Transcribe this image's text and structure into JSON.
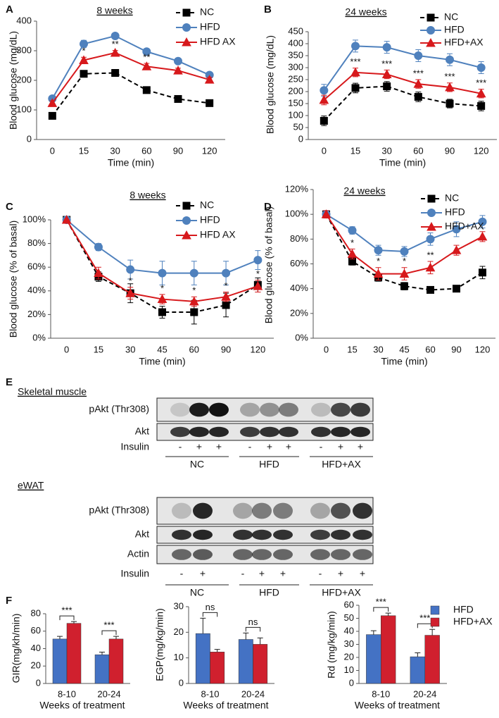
{
  "panel_labels": [
    "A",
    "B",
    "C",
    "D",
    "E",
    "F"
  ],
  "chart_data": [
    {
      "type": "line",
      "title": "8 weeks",
      "xlabel": "Time (min)",
      "ylabel": "Blood glucose (mg/dL)",
      "categories": [
        "0",
        "15",
        "30",
        "60",
        "90",
        "120"
      ],
      "ylim": [
        0,
        400
      ],
      "yticks": [
        0,
        100,
        200,
        300,
        400
      ],
      "legend": "upper right",
      "series": [
        {
          "name": "NC",
          "color": "#000000",
          "marker": "square",
          "dashed": true,
          "values": [
            80,
            222,
            225,
            167,
            137,
            123
          ],
          "errors": [
            8,
            10,
            8,
            8,
            6,
            8
          ]
        },
        {
          "name": "HFD",
          "color": "#4f81bd",
          "marker": "circle",
          "dashed": false,
          "values": [
            138,
            323,
            350,
            297,
            265,
            218
          ],
          "errors": [
            8,
            12,
            8,
            8,
            8,
            8
          ]
        },
        {
          "name": "HFD AX",
          "color": "#d7191c",
          "marker": "triangle",
          "dashed": false,
          "values": [
            123,
            268,
            293,
            247,
            233,
            202
          ],
          "errors": [
            8,
            10,
            8,
            10,
            8,
            8
          ]
        }
      ],
      "annotations": [
        null,
        "*",
        "**",
        "**",
        null,
        null
      ]
    },
    {
      "type": "line",
      "title": "24 weeks",
      "xlabel": "Time (min)",
      "ylabel": "Blood glucose (mg/dL)",
      "categories": [
        "0",
        "15",
        "30",
        "60",
        "90",
        "120"
      ],
      "ylim": [
        0,
        450
      ],
      "yticks": [
        0,
        50,
        100,
        150,
        200,
        250,
        300,
        350,
        400,
        450
      ],
      "legend": "upper right",
      "series": [
        {
          "name": "NC",
          "color": "#000000",
          "marker": "square",
          "dashed": true,
          "values": [
            78,
            215,
            222,
            178,
            150,
            140
          ],
          "errors": [
            20,
            20,
            20,
            20,
            18,
            20
          ]
        },
        {
          "name": "HFD",
          "color": "#4f81bd",
          "marker": "circle",
          "dashed": false,
          "values": [
            205,
            390,
            385,
            350,
            333,
            300
          ],
          "errors": [
            25,
            25,
            25,
            25,
            25,
            25
          ]
        },
        {
          "name": "HFD+AX",
          "color": "#d7191c",
          "marker": "triangle",
          "dashed": false,
          "values": [
            165,
            280,
            272,
            232,
            218,
            192
          ],
          "errors": [
            20,
            18,
            18,
            18,
            18,
            18
          ]
        }
      ],
      "annotations": [
        null,
        "***",
        "***",
        "***",
        "***",
        "***"
      ]
    },
    {
      "type": "line",
      "title": "8 weeks",
      "xlabel": "Time (min)",
      "ylabel": "Blood glucose (% of basal)",
      "categories": [
        "0",
        "15",
        "30",
        "45",
        "60",
        "90",
        "120"
      ],
      "ylim": [
        0,
        100
      ],
      "yticks": [
        {
          "value": 0,
          "label": "0%"
        },
        {
          "value": 20,
          "label": "20%"
        },
        {
          "value": 40,
          "label": "40%"
        },
        {
          "value": 60,
          "label": "60%"
        },
        {
          "value": 80,
          "label": "80%"
        },
        {
          "value": 100,
          "label": "100%"
        }
      ],
      "legend": "upper right",
      "series": [
        {
          "name": "NC",
          "color": "#000000",
          "marker": "square",
          "dashed": true,
          "values": [
            100,
            52,
            38,
            22,
            22,
            28,
            45
          ],
          "errors": [
            0,
            4,
            8,
            5,
            10,
            10,
            6
          ]
        },
        {
          "name": "HFD",
          "color": "#4f81bd",
          "marker": "circle",
          "dashed": false,
          "values": [
            100,
            77,
            58,
            55,
            55,
            55,
            66
          ],
          "errors": [
            0,
            3,
            8,
            10,
            10,
            10,
            8
          ]
        },
        {
          "name": "HFD AX",
          "color": "#d7191c",
          "marker": "triangle",
          "dashed": false,
          "values": [
            100,
            55,
            38,
            33,
            31,
            35,
            44
          ],
          "errors": [
            0,
            5,
            5,
            4,
            4,
            4,
            5
          ]
        }
      ],
      "annotations": [
        null,
        null,
        "*",
        "*",
        "*",
        "*",
        "*"
      ]
    },
    {
      "type": "line",
      "title": "24 weeks",
      "xlabel": "Time (min)",
      "ylabel": "Blood glucose (% of basal)",
      "categories": [
        "0",
        "15",
        "30",
        "45",
        "60",
        "90",
        "120"
      ],
      "ylim": [
        0,
        120
      ],
      "yticks": [
        {
          "value": 0,
          "label": "0%"
        },
        {
          "value": 20,
          "label": "20%"
        },
        {
          "value": 40,
          "label": "40%"
        },
        {
          "value": 60,
          "label": "60%"
        },
        {
          "value": 80,
          "label": "80%"
        },
        {
          "value": 100,
          "label": "100%"
        },
        {
          "value": 120,
          "label": "120%"
        }
      ],
      "legend": "upper right",
      "series": [
        {
          "name": "NC",
          "color": "#000000",
          "marker": "square",
          "dashed": true,
          "values": [
            100,
            62,
            49,
            42,
            39,
            40,
            53
          ],
          "errors": [
            2,
            3,
            3,
            3,
            2,
            2,
            5
          ]
        },
        {
          "name": "HFD",
          "color": "#4f81bd",
          "marker": "circle",
          "dashed": false,
          "values": [
            100,
            87,
            71,
            70,
            80,
            88,
            94
          ],
          "errors": [
            3,
            3,
            4,
            4,
            5,
            6,
            5
          ]
        },
        {
          "name": "HFD+AX",
          "color": "#d7191c",
          "marker": "triangle",
          "dashed": false,
          "values": [
            100,
            68,
            52,
            52,
            57,
            71,
            82
          ],
          "errors": [
            3,
            4,
            5,
            5,
            5,
            4,
            4
          ]
        }
      ],
      "annotations": [
        null,
        "*",
        "*",
        "*",
        "**",
        null,
        null
      ]
    },
    {
      "type": "bar",
      "xlabel": "Weeks of treatment",
      "ylabel": "GIR(mg/kh/min)",
      "categories": [
        "8-10",
        "20-24"
      ],
      "ylim": [
        0,
        80
      ],
      "yticks": [
        0,
        20,
        40,
        60,
        80
      ],
      "legend": false,
      "series": [
        {
          "name": "HFD",
          "color": "#4472c4",
          "values": [
            51,
            33
          ],
          "errors": [
            3,
            3
          ]
        },
        {
          "name": "HFD+AX",
          "color": "#d0202e",
          "values": [
            69,
            51
          ],
          "errors": [
            2,
            3
          ]
        }
      ],
      "annotations": [
        "***",
        "***"
      ]
    },
    {
      "type": "bar",
      "xlabel": "Weeks of treatment",
      "ylabel": "EGP(mg/kg/min)",
      "categories": [
        "8-10",
        "20-24"
      ],
      "ylim": [
        0,
        30
      ],
      "yticks": [
        0,
        10,
        20,
        30
      ],
      "legend": false,
      "series": [
        {
          "name": "HFD",
          "color": "#4472c4",
          "values": [
            19.5,
            17.2
          ],
          "errors": [
            6,
            2.5
          ]
        },
        {
          "name": "HFD+AX",
          "color": "#d0202e",
          "values": [
            12.3,
            15.3
          ],
          "errors": [
            1,
            2.5
          ]
        }
      ],
      "annotations": [
        "ns",
        "ns"
      ]
    },
    {
      "type": "bar",
      "xlabel": "Weeks of treatment",
      "ylabel": "Rd (mg/kg/min)",
      "categories": [
        "8-10",
        "20-24"
      ],
      "ylim": [
        0,
        60
      ],
      "yticks": [
        0,
        10,
        20,
        30,
        40,
        50,
        60
      ],
      "legend": "upper right",
      "series": [
        {
          "name": "HFD",
          "color": "#4472c4",
          "values": [
            37.5,
            20.5
          ],
          "errors": [
            3,
            3
          ]
        },
        {
          "name": "HFD+AX",
          "color": "#d0202e",
          "values": [
            52,
            37
          ],
          "errors": [
            2,
            4.5
          ]
        }
      ],
      "annotations": [
        "***",
        "***"
      ]
    }
  ],
  "blots": {
    "sections": [
      {
        "title": "Skeletal muscle",
        "rows": [
          "pAkt (Thr308)",
          "Akt"
        ],
        "insulin_label": "Insulin",
        "insulin": [
          "-",
          "+",
          "+",
          "-",
          "+",
          "+",
          "-",
          "+",
          "+"
        ],
        "groups": [
          "NC",
          "HFD",
          "HFD+AX"
        ]
      },
      {
        "title": "eWAT",
        "rows": [
          "pAkt (Thr308)",
          "Akt",
          "Actin"
        ],
        "insulin_label": "Insulin",
        "insulin": [
          "-",
          "+",
          "-",
          "+",
          "+",
          "-",
          "+",
          "+"
        ],
        "groups": [
          "NC",
          "HFD",
          "HFD+AX"
        ]
      }
    ]
  }
}
